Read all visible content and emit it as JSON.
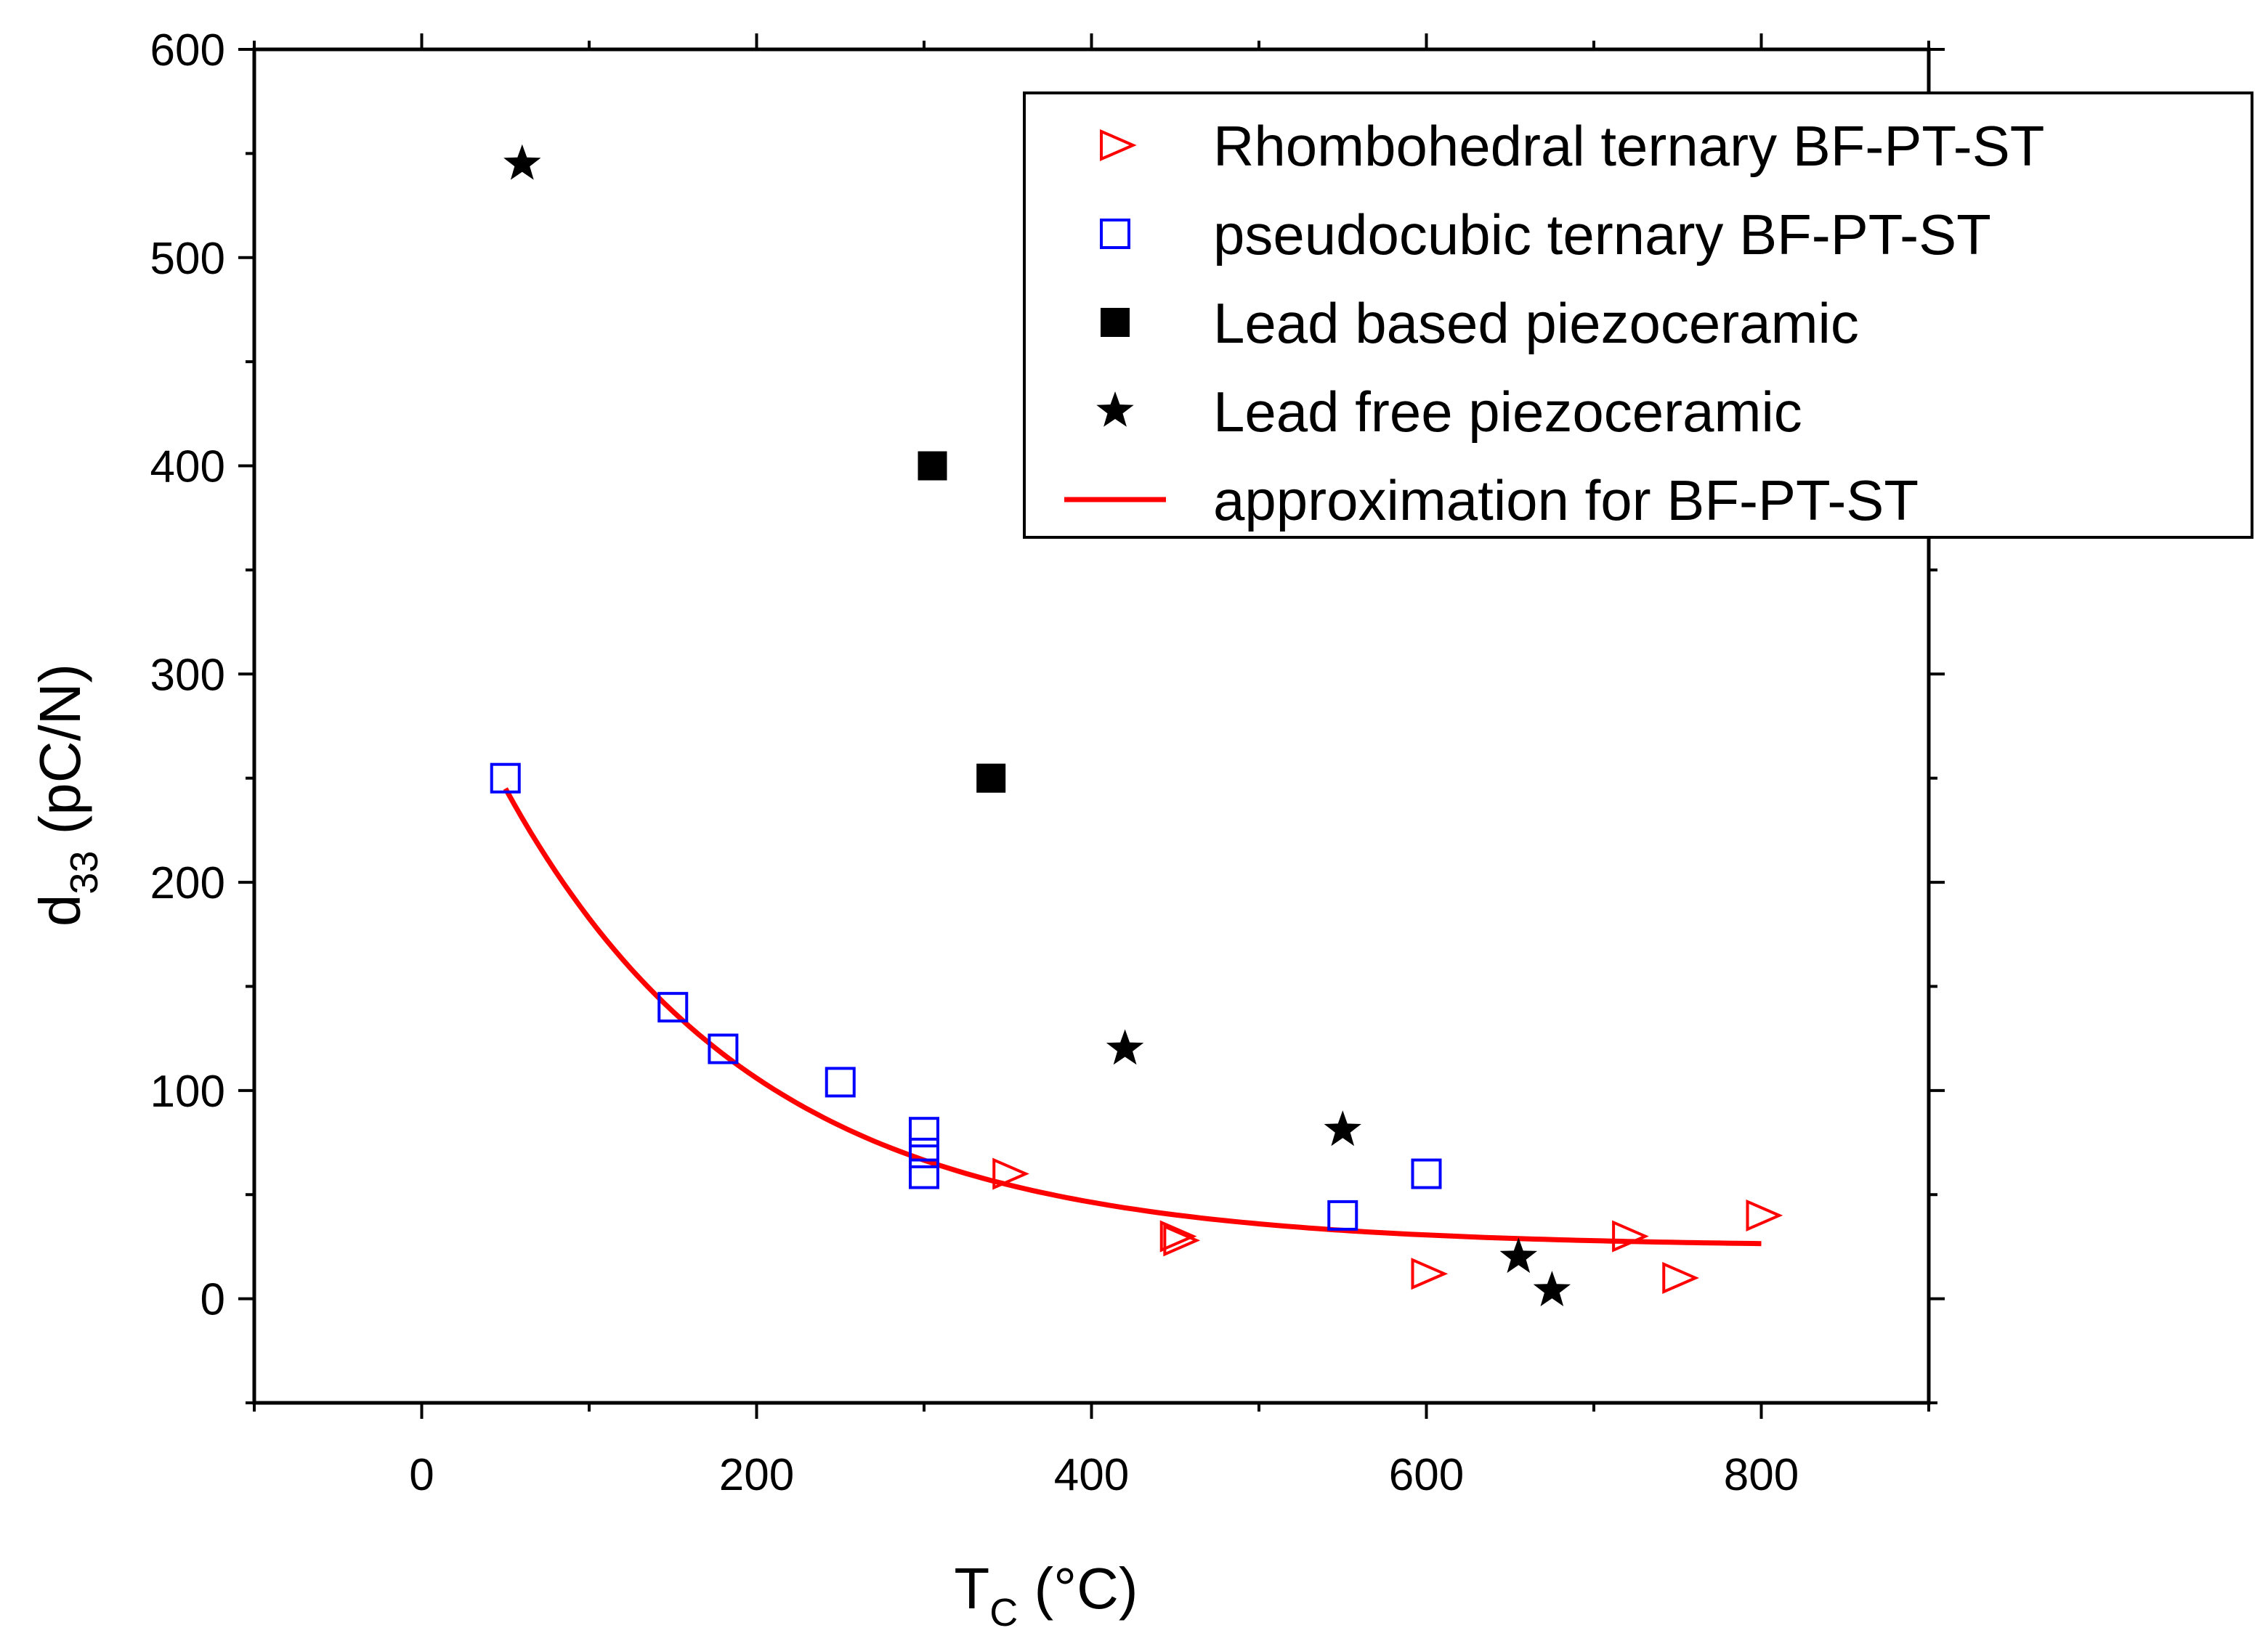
{
  "chart_data": {
    "type": "scatter",
    "title": "",
    "xlabel": {
      "main": "T",
      "sub": "C",
      "unit": " (°C)"
    },
    "ylabel": {
      "main": "d",
      "sub": "33",
      "unit": " (pC/N)"
    },
    "xlim": [
      -100,
      900
    ],
    "ylim": [
      -50,
      600
    ],
    "xticks": [
      0,
      200,
      400,
      600,
      800
    ],
    "yticks": [
      0,
      100,
      200,
      300,
      400,
      500,
      600
    ],
    "grid": false,
    "legend_position": "top-right",
    "series": [
      {
        "name": "Rhombohedral ternary BF-PT-ST",
        "marker": "triangle-right-open",
        "color": "#ff0000",
        "points": [
          [
            350,
            60
          ],
          [
            450,
            30
          ],
          [
            452,
            28
          ],
          [
            600,
            12
          ],
          [
            720,
            30
          ],
          [
            750,
            10
          ],
          [
            800,
            40
          ]
        ]
      },
      {
        "name": "pseudocubic ternary BF-PT-ST",
        "marker": "square-open",
        "color": "#0000ff",
        "points": [
          [
            50,
            250
          ],
          [
            150,
            140
          ],
          [
            180,
            120
          ],
          [
            250,
            104
          ],
          [
            300,
            80
          ],
          [
            300,
            70
          ],
          [
            300,
            60
          ],
          [
            550,
            40
          ],
          [
            600,
            60
          ]
        ]
      },
      {
        "name": "Lead based piezoceramic",
        "marker": "square-filled",
        "color": "#000000",
        "points": [
          [
            305,
            400
          ],
          [
            340,
            250
          ]
        ]
      },
      {
        "name": "Lead free piezoceramic",
        "marker": "star-filled",
        "color": "#000000",
        "points": [
          [
            60,
            545
          ],
          [
            420,
            120
          ],
          [
            550,
            81
          ],
          [
            655,
            20
          ],
          [
            675,
            4
          ]
        ]
      },
      {
        "name": "approximation for BF-PT-ST",
        "marker": "line",
        "color": "#ff0000",
        "model": {
          "form": "y0 + A*exp(-(x-x0)/t)",
          "y0": 25,
          "A": 220,
          "x0": 50,
          "t": 150
        },
        "x_range": [
          50,
          800
        ]
      }
    ]
  }
}
